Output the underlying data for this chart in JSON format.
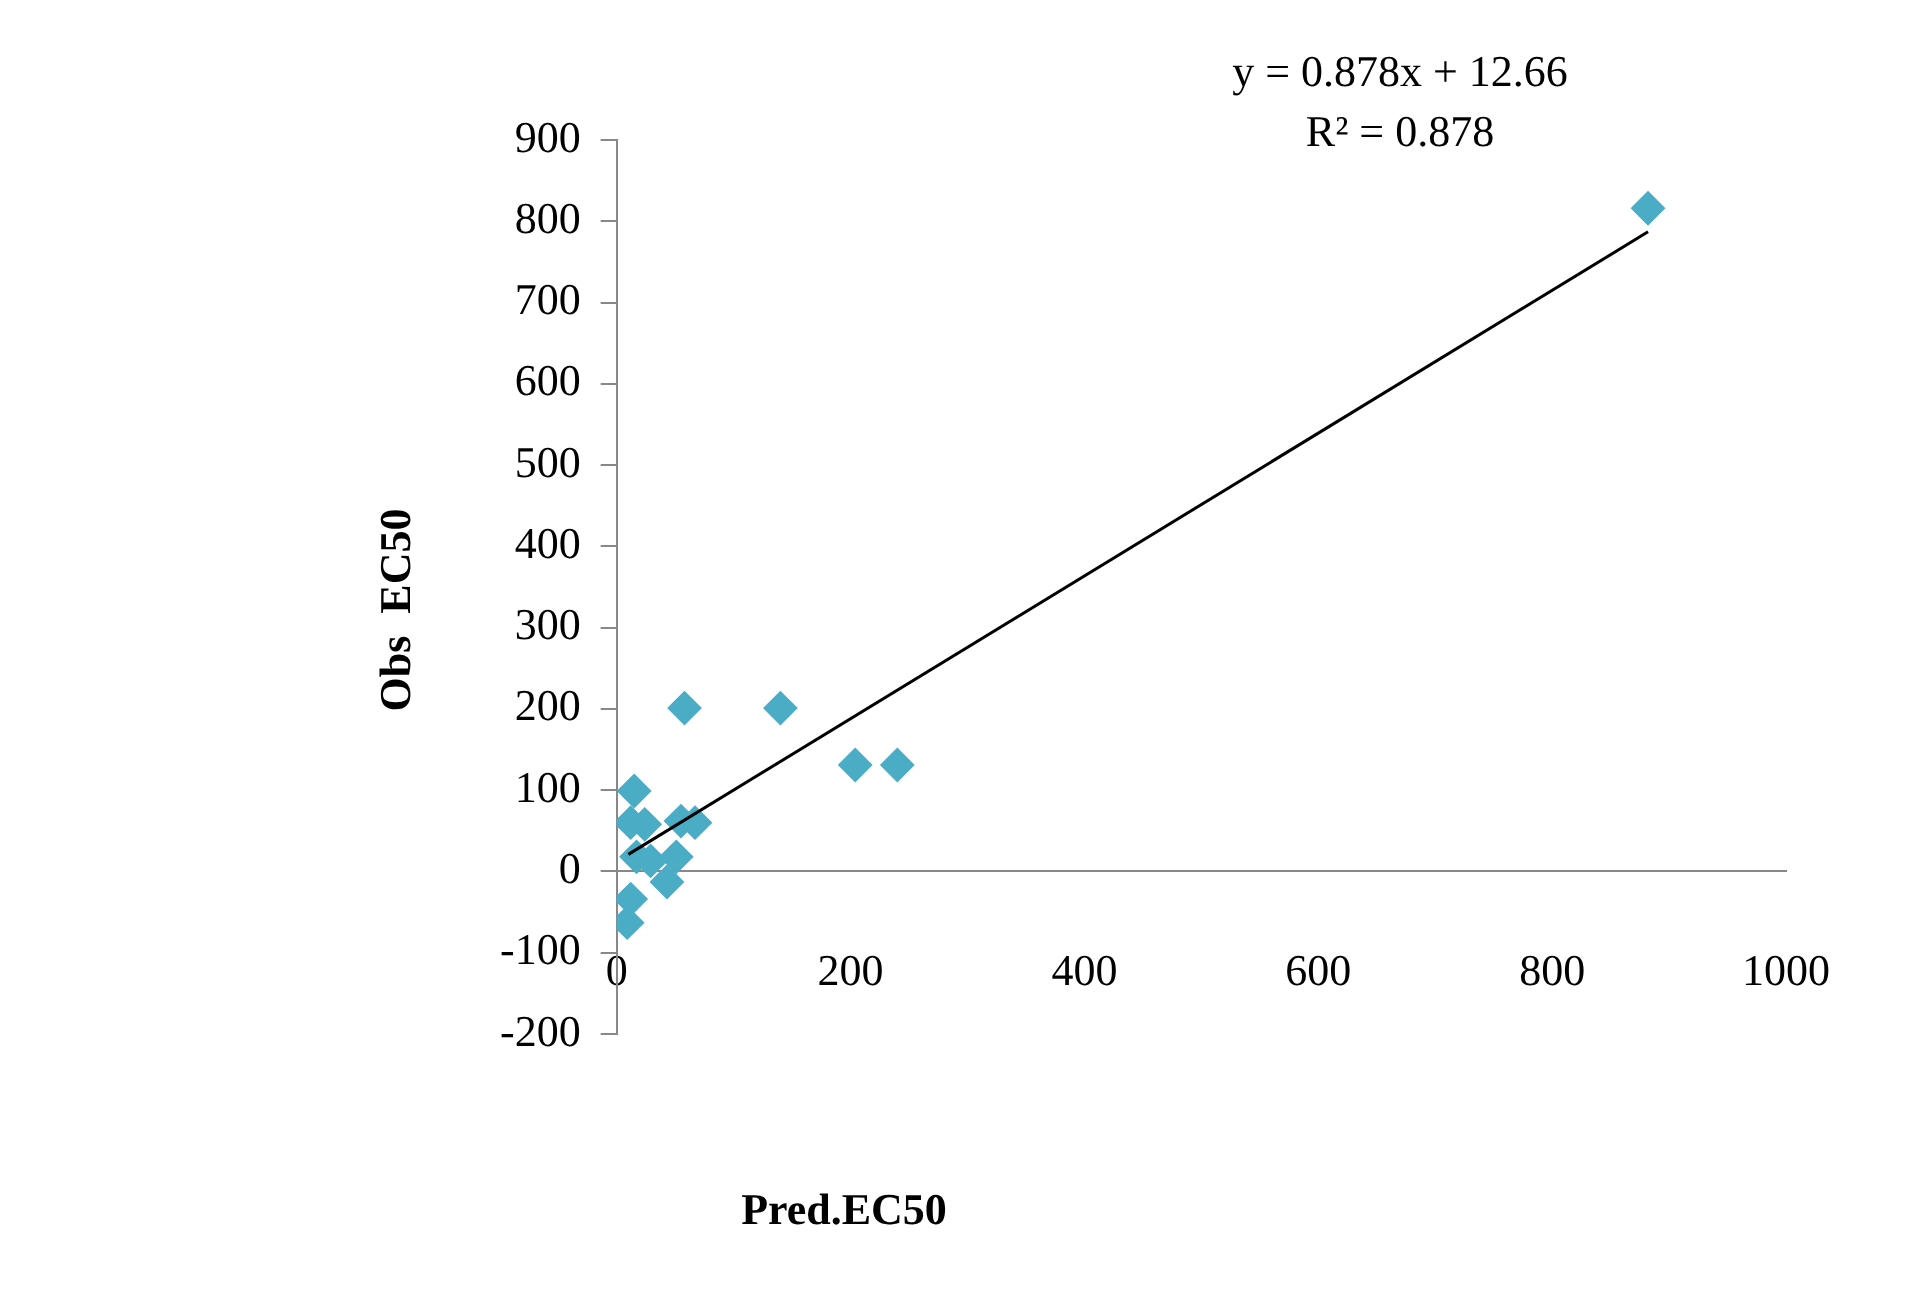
{
  "chart_data": {
    "type": "scatter",
    "xlabel": "Pred.EC50",
    "ylabel": "Obs  EC50",
    "annotations": [
      "y = 0.878x + 12.66",
      "R² = 0.878"
    ],
    "xlim": [
      0,
      1000
    ],
    "xticks": [
      0,
      200,
      400,
      600,
      800,
      1000
    ],
    "ylim": [
      -200,
      900
    ],
    "yticks": [
      -200,
      -100,
      0,
      100,
      200,
      300,
      400,
      500,
      600,
      700,
      800,
      900
    ],
    "grid": false,
    "legend": false,
    "marker": "diamond",
    "series": [
      {
        "type": "scatter",
        "color": "#4bacc6",
        "x": [
          882,
          58,
          140,
          204,
          240,
          15,
          12,
          24,
          55,
          67,
          17,
          29,
          51,
          43,
          12,
          9
        ],
        "values": [
          816,
          201,
          201,
          131,
          131,
          99,
          60,
          58,
          62,
          60,
          18,
          13,
          18,
          -13,
          -34,
          -63
        ]
      },
      {
        "type": "line",
        "color": "#000000",
        "line_style": "solid",
        "marker": "none",
        "x": [
          10,
          882
        ],
        "values": [
          21,
          787
        ]
      }
    ]
  }
}
